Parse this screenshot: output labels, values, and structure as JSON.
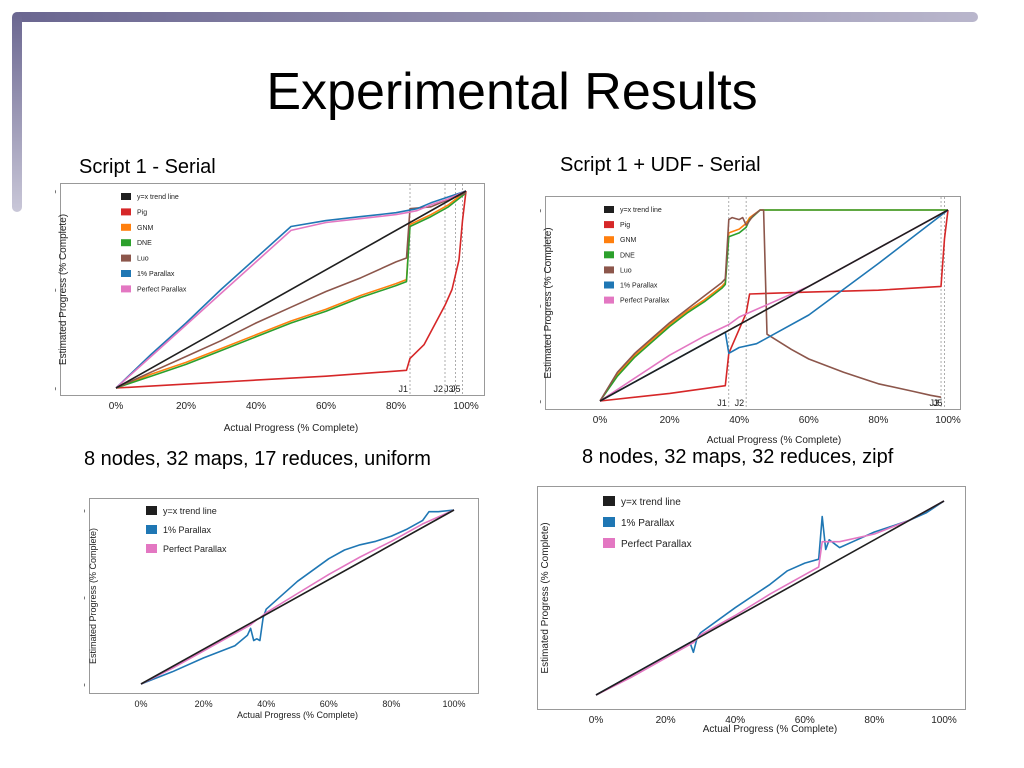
{
  "slide": {
    "title": "Experimental Results",
    "captions": [
      "Script 1 - Serial",
      "Script 1 + UDF - Serial",
      "8 nodes, 32 maps, 17 reduces, uniform",
      "8 nodes, 32 maps, 32 reduces, zipf"
    ]
  },
  "colors": {
    "accent": "#6a6690",
    "trend": "#1f1f1f",
    "pig": "#d62728",
    "gnm": "#ff7f0e",
    "dne": "#2ca02c",
    "luo": "#8c564b",
    "parallax1": "#1f77b4",
    "perfect": "#e377c2"
  },
  "chart_data": [
    {
      "type": "line",
      "xlabel": "Actual Progress (% Complete)",
      "ylabel": "Estimated Progress (% Complete)",
      "xlim": [
        0,
        100
      ],
      "ylim": [
        0,
        100
      ],
      "x_ticks": [
        "0%",
        "20%",
        "40%",
        "60%",
        "80%",
        "100%"
      ],
      "y_ticks": [
        "0%",
        "50%",
        "100%"
      ],
      "legend": "top-left",
      "job_markers": [
        {
          "x": 84,
          "label": "J1"
        },
        {
          "x": 94,
          "label": "J2"
        },
        {
          "x": 97,
          "label": "J3"
        },
        {
          "x": 99,
          "label": "J5"
        }
      ],
      "series": [
        {
          "name": "y=x trend line",
          "color": "#1f1f1f",
          "x": [
            0,
            100
          ],
          "y": [
            0,
            100
          ]
        },
        {
          "name": "Pig",
          "color": "#d62728",
          "x": [
            0,
            20,
            40,
            60,
            83,
            84,
            88,
            94,
            96,
            98,
            99,
            100
          ],
          "y": [
            0,
            2,
            4,
            6,
            9,
            15,
            22,
            42,
            50,
            65,
            85,
            100
          ]
        },
        {
          "name": "GNM",
          "color": "#ff7f0e",
          "x": [
            0,
            10,
            20,
            30,
            40,
            50,
            60,
            70,
            80,
            83,
            84,
            90,
            95,
            100
          ],
          "y": [
            0,
            7,
            13,
            20,
            27,
            34,
            40,
            47,
            53,
            55,
            83,
            88,
            93,
            100
          ]
        },
        {
          "name": "DNE",
          "color": "#2ca02c",
          "x": [
            0,
            10,
            20,
            30,
            40,
            50,
            60,
            70,
            80,
            83,
            84,
            90,
            95,
            100
          ],
          "y": [
            0,
            6,
            12,
            19,
            26,
            33,
            39,
            46,
            52,
            54,
            82,
            87,
            92,
            99
          ]
        },
        {
          "name": "Luo",
          "color": "#8c564b",
          "x": [
            0,
            10,
            20,
            30,
            40,
            50,
            60,
            70,
            80,
            83,
            84,
            90,
            94,
            97,
            100
          ],
          "y": [
            0,
            8,
            16,
            24,
            33,
            41,
            49,
            56,
            64,
            66,
            91,
            92,
            95,
            97,
            99
          ]
        },
        {
          "name": "1% Parallax",
          "color": "#1f77b4",
          "x": [
            0,
            10,
            20,
            30,
            40,
            50,
            60,
            70,
            80,
            83,
            86,
            90,
            95,
            100
          ],
          "y": [
            0,
            17,
            33,
            50,
            66,
            82,
            85,
            87,
            89,
            90,
            91,
            94,
            97,
            100
          ]
        },
        {
          "name": "Perfect Parallax",
          "color": "#e377c2",
          "x": [
            0,
            10,
            20,
            30,
            40,
            50,
            60,
            70,
            80,
            83,
            86,
            90,
            95,
            100
          ],
          "y": [
            0,
            16,
            32,
            48,
            64,
            80,
            84,
            86,
            88,
            89,
            90,
            93,
            96,
            100
          ]
        }
      ]
    },
    {
      "type": "line",
      "xlabel": "Actual Progress (% Complete)",
      "ylabel": "Estimated Progress (% Complete)",
      "xlim": [
        0,
        100
      ],
      "ylim": [
        0,
        100
      ],
      "x_ticks": [
        "0%",
        "20%",
        "40%",
        "60%",
        "80%",
        "100%"
      ],
      "y_ticks": [
        "0%",
        "50%",
        "100%"
      ],
      "legend": "top-left",
      "job_markers": [
        {
          "x": 37,
          "label": "J1"
        },
        {
          "x": 42,
          "label": "J2"
        },
        {
          "x": 98,
          "label": "J3"
        },
        {
          "x": 99,
          "label": "J5"
        }
      ],
      "series": [
        {
          "name": "y=x trend line",
          "color": "#1f1f1f",
          "x": [
            0,
            100
          ],
          "y": [
            0,
            100
          ]
        },
        {
          "name": "Pig",
          "color": "#d62728",
          "x": [
            0,
            20,
            36,
            37,
            42,
            43,
            60,
            80,
            98,
            99,
            100
          ],
          "y": [
            0,
            4,
            8,
            25,
            46,
            56,
            57,
            58,
            60,
            85,
            100
          ]
        },
        {
          "name": "GNM",
          "color": "#ff7f0e",
          "x": [
            0,
            5,
            10,
            15,
            20,
            25,
            30,
            35,
            36,
            37,
            40,
            42,
            43,
            46,
            50,
            100
          ],
          "y": [
            0,
            14,
            24,
            32,
            40,
            47,
            53,
            60,
            62,
            88,
            90,
            93,
            96,
            100,
            100,
            100
          ]
        },
        {
          "name": "DNE",
          "color": "#2ca02c",
          "x": [
            0,
            5,
            10,
            15,
            20,
            25,
            30,
            35,
            36,
            37,
            40,
            42,
            43,
            46,
            50,
            100
          ],
          "y": [
            0,
            13,
            23,
            31,
            39,
            46,
            52,
            59,
            61,
            86,
            88,
            91,
            95,
            100,
            100,
            100
          ]
        },
        {
          "name": "Luo",
          "color": "#8c564b",
          "x": [
            0,
            5,
            10,
            15,
            20,
            25,
            30,
            35,
            36,
            37,
            38,
            40,
            41,
            42,
            44,
            46,
            47,
            48,
            55,
            60,
            70,
            80,
            90,
            95,
            98
          ],
          "y": [
            0,
            15,
            25,
            33,
            41,
            48,
            55,
            62,
            64,
            95,
            96,
            95,
            96,
            92,
            97,
            100,
            100,
            35,
            27,
            22,
            15,
            9,
            5,
            3,
            2
          ]
        },
        {
          "name": "1% Parallax",
          "color": "#1f77b4",
          "x": [
            0,
            10,
            20,
            30,
            36,
            37,
            40,
            45,
            60,
            80,
            100
          ],
          "y": [
            0,
            10,
            20,
            30,
            36,
            25,
            28,
            30,
            45,
            72,
            100
          ]
        },
        {
          "name": "Perfect Parallax",
          "color": "#e377c2",
          "x": [
            0,
            10,
            20,
            30,
            37,
            40,
            50,
            60,
            80,
            100
          ],
          "y": [
            0,
            12,
            24,
            34,
            40,
            44,
            52,
            60,
            80,
            100
          ]
        }
      ]
    },
    {
      "type": "line",
      "xlabel": "Actual Progress (% Complete)",
      "ylabel": "Estimated Progress (% Complete)",
      "xlim": [
        0,
        100
      ],
      "ylim": [
        0,
        100
      ],
      "x_ticks": [
        "0%",
        "20%",
        "40%",
        "60%",
        "80%",
        "100%"
      ],
      "y_ticks": [
        "0%",
        "50%",
        "100%"
      ],
      "legend": "top-left",
      "job_markers": [],
      "series": [
        {
          "name": "y=x trend line",
          "color": "#1f1f1f",
          "x": [
            0,
            100
          ],
          "y": [
            0,
            100
          ]
        },
        {
          "name": "1% Parallax",
          "color": "#1f77b4",
          "x": [
            0,
            10,
            20,
            30,
            34,
            35,
            36,
            37,
            38,
            39,
            40,
            50,
            60,
            65,
            70,
            75,
            80,
            85,
            90,
            92,
            95,
            100
          ],
          "y": [
            0,
            7,
            15,
            22,
            28,
            32,
            25,
            26,
            25,
            38,
            43,
            59,
            72,
            77,
            80,
            82,
            85,
            89,
            94,
            99,
            99,
            100
          ]
        },
        {
          "name": "Perfect Parallax",
          "color": "#e377c2",
          "x": [
            0,
            10,
            20,
            30,
            35,
            37,
            38,
            40,
            50,
            60,
            70,
            80,
            90,
            100
          ],
          "y": [
            0,
            9,
            19,
            29,
            34,
            37,
            38,
            41,
            52,
            63,
            73,
            82,
            92,
            100
          ]
        }
      ]
    },
    {
      "type": "line",
      "xlabel": "Actual Progress (% Complete)",
      "ylabel": "Estimated Progress (% Complete)",
      "xlim": [
        0,
        100
      ],
      "ylim": [
        0,
        100
      ],
      "x_ticks": [
        "0%",
        "20%",
        "40%",
        "60%",
        "80%",
        "100%"
      ],
      "y_ticks": [
        "0%",
        "50%",
        "100%"
      ],
      "legend": "top-left",
      "job_markers": [],
      "series": [
        {
          "name": "y=x trend line",
          "color": "#1f1f1f",
          "x": [
            0,
            100
          ],
          "y": [
            0,
            100
          ]
        },
        {
          "name": "1% Parallax",
          "color": "#1f77b4",
          "x": [
            0,
            10,
            20,
            27,
            28,
            29,
            30,
            40,
            50,
            55,
            60,
            64,
            65,
            66,
            67,
            70,
            75,
            80,
            85,
            90,
            95,
            100
          ],
          "y": [
            0,
            10,
            20,
            27,
            22,
            29,
            32,
            45,
            57,
            64,
            68,
            70,
            92,
            75,
            80,
            76,
            80,
            84,
            87,
            90,
            94,
            100
          ]
        },
        {
          "name": "Perfect Parallax",
          "color": "#e377c2",
          "x": [
            0,
            10,
            20,
            28,
            30,
            40,
            50,
            60,
            64,
            65,
            70,
            80,
            90,
            100
          ],
          "y": [
            0,
            9,
            19,
            27,
            31,
            41,
            52,
            62,
            66,
            79,
            79,
            83,
            90,
            100
          ]
        }
      ]
    }
  ]
}
